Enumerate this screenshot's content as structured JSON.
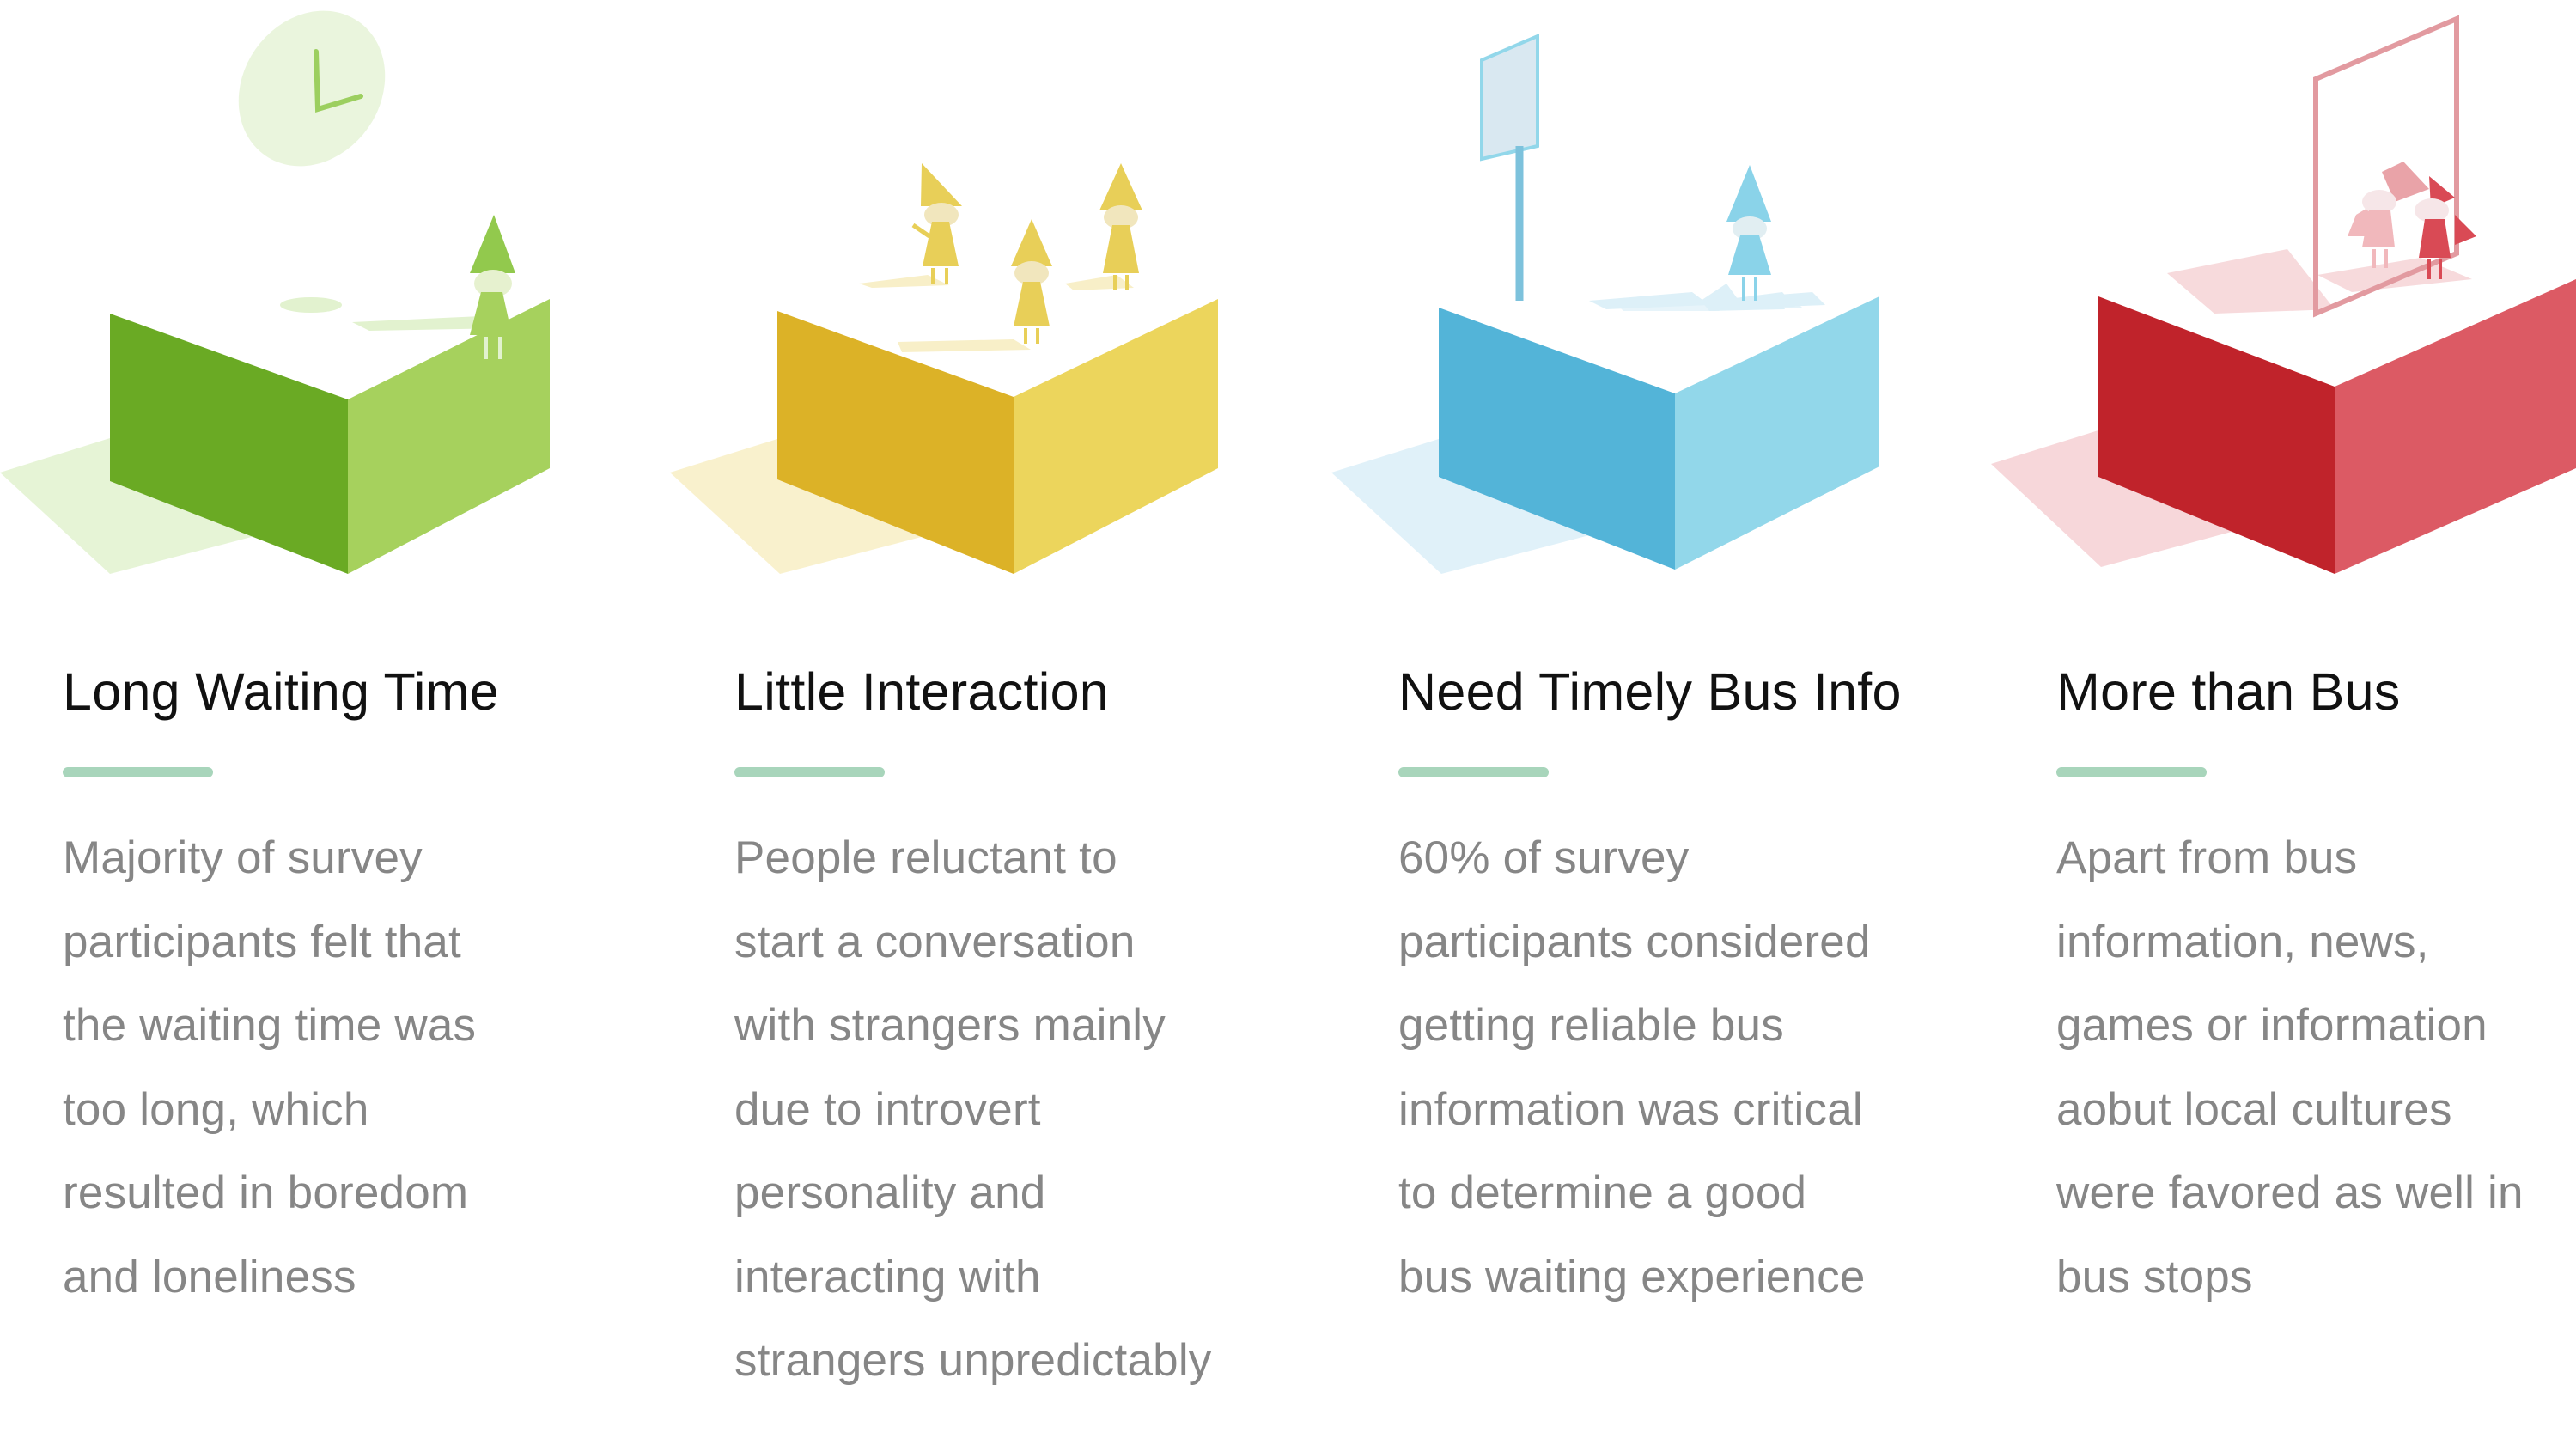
{
  "cards": [
    {
      "title": "Long Waiting Time",
      "body": "Majority of survey\nparticipants felt that\nthe waiting time was\ntoo long, which\nresulted in boredom\nand loneliness",
      "icon": "clock-waiting-person-icon",
      "colors": {
        "front": "#6aaa24",
        "side": "#a6d15d",
        "light": "#e2f2cf"
      }
    },
    {
      "title": "Little Interaction",
      "body": "People reluctant to\nstart a conversation\nwith strangers mainly\ndue to introvert\npersonality and\ninteracting with\nstrangers unpredictably",
      "icon": "three-strangers-icon",
      "colors": {
        "front": "#dcb227",
        "side": "#ecd55c",
        "light": "#f8efc8"
      }
    },
    {
      "title": "Need Timely Bus Info",
      "body": "60% of survey\nparticipants considered\ngetting reliable bus\ninformation was critical\nto determine a good\nbus waiting experience",
      "icon": "bus-stop-sign-icon",
      "colors": {
        "front": "#53b4d8",
        "side": "#92d7ea",
        "light": "#ddf0f8"
      }
    },
    {
      "title": "More than Bus",
      "body": "Apart from bus\ninformation, news,\ngames or information\naobut local cultures\nwere favored as well in\nbus stops",
      "icon": "info-screen-icon",
      "colors": {
        "front": "#c0232b",
        "side": "#dc5a64",
        "light": "#f6d3d6"
      }
    }
  ],
  "accent": {
    "divider": "#a8d5bb",
    "title": "#111111",
    "body": "#868686"
  }
}
